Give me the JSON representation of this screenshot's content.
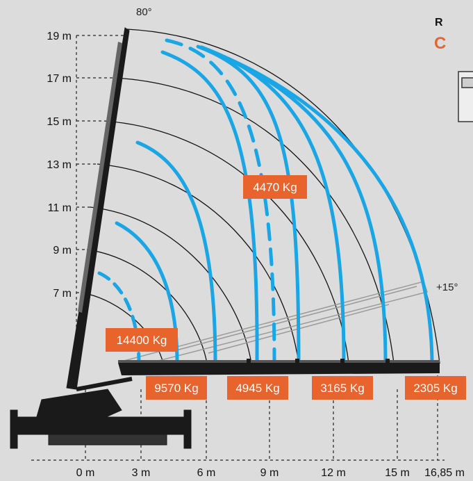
{
  "angles": {
    "max": "80°",
    "min": "+15°"
  },
  "corner": {
    "letter": "R",
    "code_fragment": "C"
  },
  "y_axis_labels": [
    "19 m",
    "17 m",
    "15 m",
    "13 m",
    "11 m",
    "9 m",
    "7 m"
  ],
  "x_axis_labels": [
    "0 m",
    "3 m",
    "6 m",
    "9 m",
    "12 m",
    "15 m",
    "16,85 m"
  ],
  "load_labels": [
    "4470 Kg",
    "14400 Kg",
    "9570 Kg",
    "4945 Kg",
    "3165 Kg",
    "2305 Kg"
  ],
  "colors": {
    "background": "#dcdcdc",
    "load_curve": "#1aa6e4",
    "label_fill": "#e8642c",
    "label_text": "#ffffff",
    "crane": "#1a1a1a",
    "arc": "#111111",
    "dashed_grid": "#222222"
  }
}
